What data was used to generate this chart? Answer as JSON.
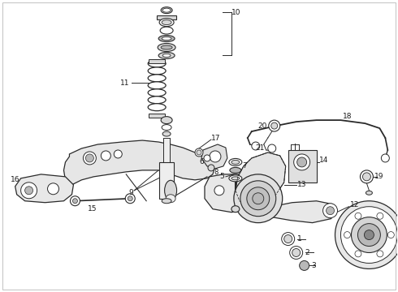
{
  "bg_color": "#ffffff",
  "line_color": "#2a2a2a",
  "text_color": "#1a1a1a",
  "figsize": [
    4.9,
    3.6
  ],
  "dpi": 100,
  "border_color": "#cccccc",
  "gray_fill": "#d8d8d8",
  "gray_light": "#eeeeee",
  "gray_mid": "#b8b8b8",
  "gray_dark": "#888888"
}
